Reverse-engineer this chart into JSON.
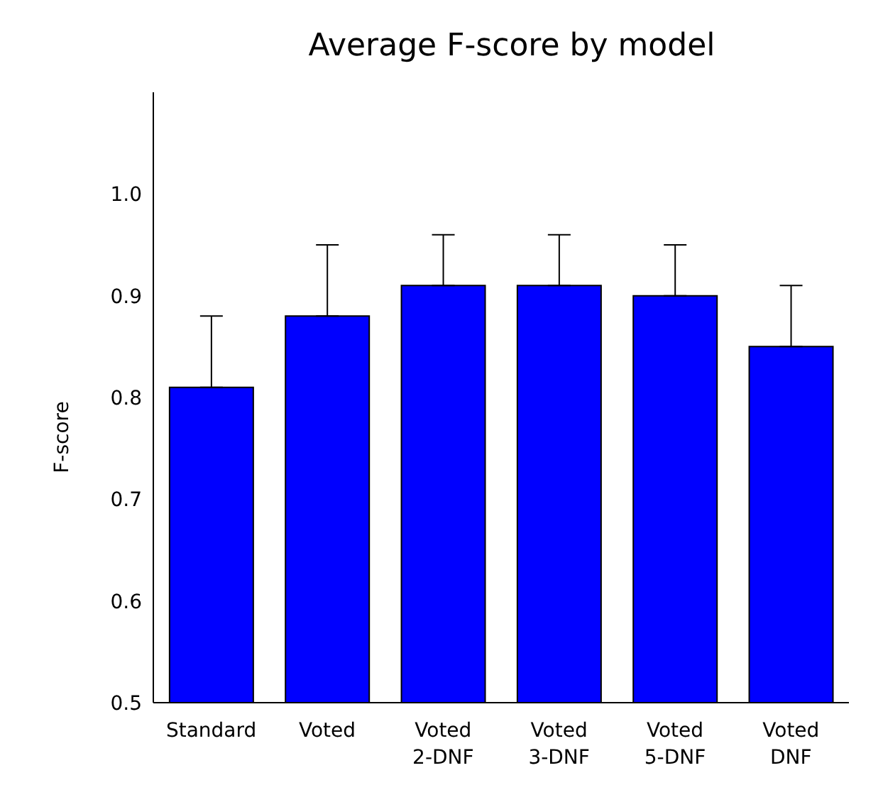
{
  "chart_data": {
    "type": "bar",
    "title": "Average F-score by model",
    "ylabel": "F-score",
    "categories": [
      "Standard",
      "Voted",
      "Voted\n2-DNF",
      "Voted\n3-DNF",
      "Voted\n5-DNF",
      "Voted\nDNF"
    ],
    "series": [
      {
        "color": "#0000ff",
        "values": [
          0.81,
          0.88,
          0.91,
          0.91,
          0.9,
          0.85
        ],
        "errors": [
          [
            0.81,
            0.88
          ],
          [
            0.88,
            0.95
          ],
          [
            0.91,
            0.96
          ],
          [
            0.91,
            0.96
          ],
          [
            0.9,
            0.95
          ],
          [
            0.85,
            0.91
          ]
        ]
      }
    ],
    "ylim": [
      0.5,
      1.1
    ],
    "yticks": [
      {
        "value": 0.5,
        "label": "0.5"
      },
      {
        "value": 0.6,
        "label": "0.6"
      },
      {
        "value": 0.7,
        "label": "0.7"
      },
      {
        "value": 0.8,
        "label": "0.8"
      },
      {
        "value": 0.9,
        "label": "0.9"
      },
      {
        "value": 1.0,
        "label": "1.0"
      }
    ],
    "grid": false,
    "legend": false
  }
}
